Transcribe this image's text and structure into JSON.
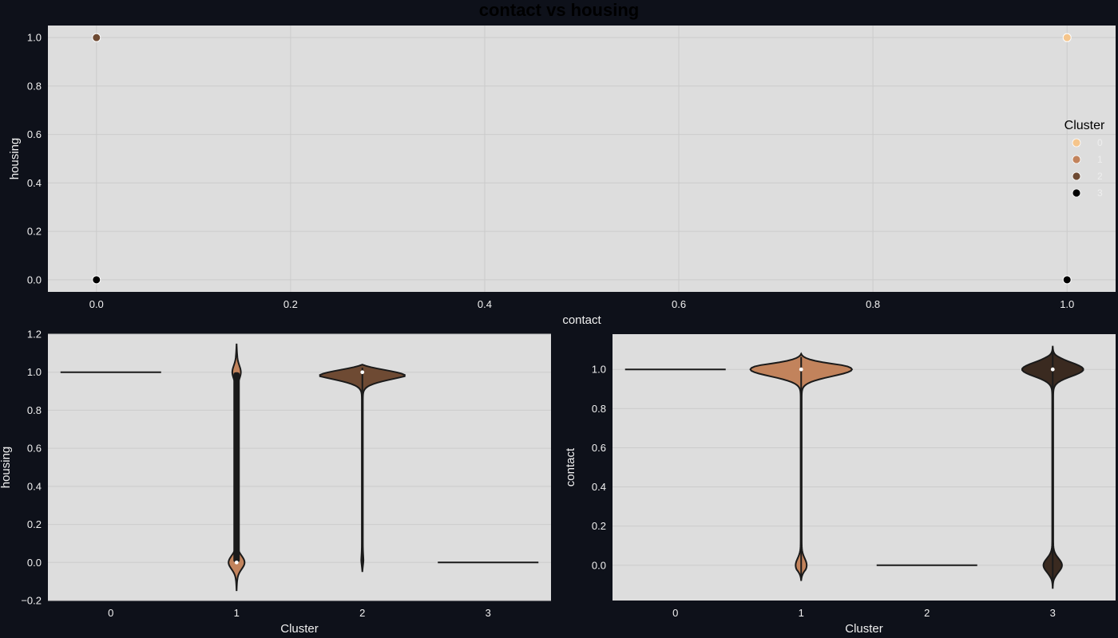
{
  "figure": {
    "title": "contact vs housing"
  },
  "colors": {
    "background": "#0e111a",
    "panel": "#dddddd",
    "grid": "#cbcbcb",
    "outline": "#1a1a1a",
    "cluster_0": "#f5c58c",
    "cluster_1": "#c2835c",
    "cluster_2": "#6e4a33",
    "cluster_3": "#000000",
    "violin_cluster_3_right": "#3a2a20"
  },
  "chart_data": [
    {
      "type": "scatter",
      "xlabel": "contact",
      "ylabel": "housing",
      "xlim": [
        -0.05,
        1.05
      ],
      "ylim": [
        -0.05,
        1.05
      ],
      "xticks": [
        "0.0",
        "0.2",
        "0.4",
        "0.6",
        "0.8",
        "1.0"
      ],
      "yticks": [
        "0.0",
        "0.2",
        "0.4",
        "0.6",
        "0.8",
        "1.0"
      ],
      "grid": true,
      "legend": {
        "title": "Cluster",
        "placement": "right",
        "entries": [
          "0",
          "1",
          "2",
          "3"
        ]
      },
      "points": [
        {
          "x": 0,
          "y": 1,
          "cluster": "2"
        },
        {
          "x": 0,
          "y": 0,
          "cluster": "3"
        },
        {
          "x": 1,
          "y": 1,
          "cluster": "0"
        },
        {
          "x": 1,
          "y": 0,
          "cluster": "3"
        }
      ]
    },
    {
      "type": "violin",
      "xlabel": "Cluster",
      "ylabel": "housing",
      "categories": [
        "0",
        "1",
        "2",
        "3"
      ],
      "ylim": [
        -0.2,
        1.2
      ],
      "yticks": [
        "−0.2",
        "0.0",
        "0.2",
        "0.4",
        "0.6",
        "0.8",
        "1.0",
        "1.2"
      ],
      "grid": true,
      "violins": [
        {
          "category": "0",
          "kind": "constant",
          "value": 1.0
        },
        {
          "category": "1",
          "kind": "bimodal",
          "median": 0.0,
          "q1": 0.0,
          "q3": 1.0,
          "min": -0.15,
          "max": 1.15,
          "low_mode_halfwidth": 0.06,
          "high_mode_halfwidth": 0.03
        },
        {
          "category": "2",
          "kind": "bimodal",
          "median": 1.0,
          "q1": 1.0,
          "q3": 1.0,
          "min": -0.05,
          "max": 1.04,
          "low_mode_halfwidth": 0.005,
          "high_mode_halfwidth": 0.4
        },
        {
          "category": "3",
          "kind": "constant",
          "value": 0.0
        }
      ]
    },
    {
      "type": "violin",
      "xlabel": "Cluster",
      "ylabel": "contact",
      "categories": [
        "0",
        "1",
        "2",
        "3"
      ],
      "ylim": [
        -0.18,
        1.18
      ],
      "yticks": [
        "0.0",
        "0.2",
        "0.4",
        "0.6",
        "0.8",
        "1.0"
      ],
      "grid": true,
      "violins": [
        {
          "category": "0",
          "kind": "constant",
          "value": 1.0
        },
        {
          "category": "1",
          "kind": "bimodal",
          "median": 1.0,
          "q1": 1.0,
          "q3": 1.0,
          "min": -0.08,
          "max": 1.08,
          "low_mode_halfwidth": 0.04,
          "high_mode_halfwidth": 0.4
        },
        {
          "category": "2",
          "kind": "constant",
          "value": 0.0
        },
        {
          "category": "3",
          "kind": "bimodal",
          "median": 1.0,
          "q1": 1.0,
          "q3": 1.0,
          "min": -0.12,
          "max": 1.12,
          "low_mode_halfwidth": 0.07,
          "high_mode_halfwidth": 0.24
        }
      ]
    }
  ]
}
